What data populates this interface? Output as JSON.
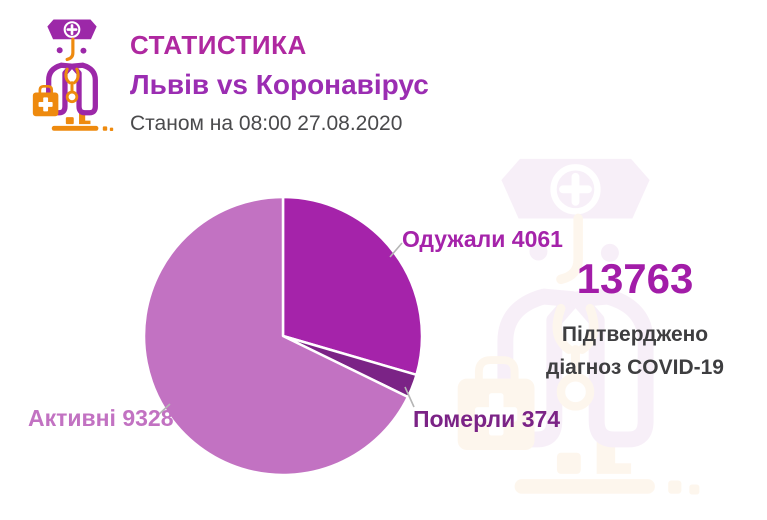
{
  "header": {
    "title": "СТАТИСТИКА",
    "subtitle": "Львів vs Коронавірус",
    "timestamp": "Станом на 08:00 27.08.2020"
  },
  "summary": {
    "total": "13763",
    "caption_line1": "Підтверджено",
    "caption_line2": "діагноз COVID-19"
  },
  "pie_labels": {
    "recovered": "Одужали 4061",
    "died": "Померли 374",
    "active": "Активні 9328"
  },
  "chart_data": {
    "type": "pie",
    "title": "Львів vs Коронавірус",
    "total": 13763,
    "start_angle_deg": 0,
    "direction": "clockwise",
    "legend_position": "outside-labels",
    "slices": [
      {
        "name": "recovered",
        "label": "Одужали",
        "value": 4061,
        "color": "#A523AA"
      },
      {
        "name": "died",
        "label": "Померли",
        "value": 374,
        "color": "#7B2386"
      },
      {
        "name": "active",
        "label": "Активні",
        "value": 9328,
        "color": "#C272C2"
      }
    ]
  },
  "colors": {
    "title": "#AF28A0",
    "subtitle": "#9B2DB2",
    "timestamp": "#4A4A4C",
    "total": "#A21CA8",
    "caption": "#3E3E40",
    "recovered": "#A523AA",
    "died": "#7B2386",
    "active": "#C272C2",
    "leader_line": "#B5B5B5",
    "icon_purple": "#9C28A8",
    "icon_orange": "#EE8A0E",
    "background": "#FFFFFF"
  }
}
